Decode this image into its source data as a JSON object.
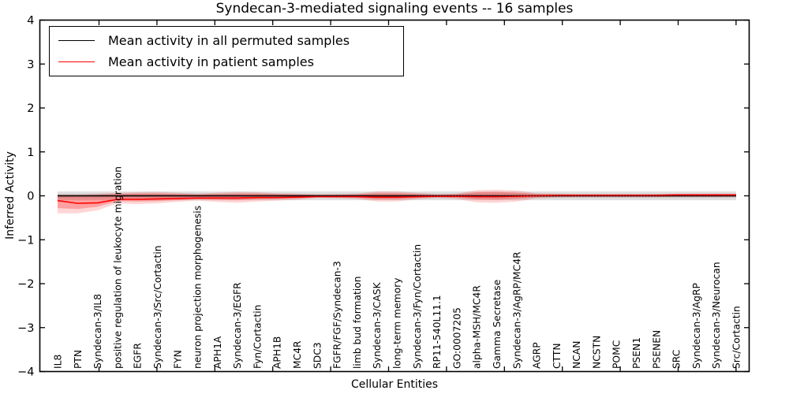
{
  "title": "Syndecan-3-mediated signaling events -- 16 samples",
  "legend": {
    "items": [
      {
        "label": "Mean activity in all permuted samples",
        "color": "#000000"
      },
      {
        "label": "Mean activity in patient samples",
        "color": "#ff0000"
      }
    ]
  },
  "axes": {
    "yticks": [
      {
        "v": 4,
        "label": "4"
      },
      {
        "v": 3,
        "label": "3"
      },
      {
        "v": 2,
        "label": "2"
      },
      {
        "v": 1,
        "label": "1"
      },
      {
        "v": 0,
        "label": "0"
      },
      {
        "v": -1,
        "label": "−1"
      },
      {
        "v": -2,
        "label": "−2"
      },
      {
        "v": -3,
        "label": "−3"
      },
      {
        "v": -4,
        "label": "−4"
      }
    ]
  },
  "chart_data": {
    "type": "line",
    "title": "Syndecan-3-mediated signaling events -- 16 samples",
    "xlabel": "Cellular Entities",
    "ylabel": "Inferred Activity",
    "ylim": [
      -4,
      4
    ],
    "grid": false,
    "legend_position": "upper left",
    "categories": [
      "IL8",
      "PTN",
      "Syndecan-3/IL8",
      "positive regulation of leukocyte migration",
      "EGFR",
      "Syndecan-3/Src/Cortactin",
      "FYN",
      "neuron projection morphogenesis",
      "APH1A",
      "Syndecan-3/EGFR",
      "Fyn/Cortactin",
      "APH1B",
      "MC4R",
      "SDC3",
      "FGFR/FGF/Syndecan-3",
      "limb bud formation",
      "Syndecan-3/CASK",
      "long-term memory",
      "Syndecan-3/Fyn/Cortactin",
      "RP11-540L11.1",
      "GO:0007205",
      "alpha-MSH/MC4R",
      "Gamma Secretase",
      "Syndecan-3/AgRP/MC4R",
      "AGRP",
      "CTTN",
      "NCAN",
      "NCSTN",
      "POMC",
      "PSEN1",
      "PSENEN",
      "SRC",
      "Syndecan-3/AgRP",
      "Syndecan-3/Neurocan",
      "Src/Cortactin"
    ],
    "series": [
      {
        "name": "Mean activity in all permuted samples",
        "color": "#000000",
        "style": "solid",
        "width": 1.5,
        "values": [
          0,
          0,
          0,
          0,
          0,
          0,
          0,
          0,
          0,
          0,
          0,
          0,
          0,
          0,
          0,
          0,
          0,
          0,
          0,
          0,
          0,
          0,
          0,
          0,
          0,
          0,
          0,
          0,
          0,
          0,
          0,
          0,
          0,
          0,
          0
        ]
      },
      {
        "name": "Mean activity in patient samples",
        "color": "#ff0000",
        "style": "solid",
        "width": 1.6,
        "values": [
          -0.11,
          -0.17,
          -0.16,
          -0.08,
          -0.08,
          -0.07,
          -0.06,
          -0.05,
          -0.05,
          -0.05,
          -0.04,
          -0.04,
          -0.03,
          -0.02,
          -0.02,
          -0.02,
          -0.03,
          -0.03,
          -0.02,
          -0.01,
          -0.01,
          -0.02,
          -0.02,
          -0.01,
          0,
          0.01,
          0.01,
          0.01,
          0.01,
          0.01,
          0.01,
          0.02,
          0.02,
          0.02,
          0.02
        ]
      }
    ],
    "reference_line": {
      "y": 0,
      "style": "dotted",
      "color": "#000000"
    },
    "bands": [
      {
        "name": "permuted-range",
        "color": "#000000",
        "opacity": 0.12,
        "upper": [
          0.1,
          0.1,
          0.1,
          0.1,
          0.1,
          0.1,
          0.1,
          0.1,
          0.1,
          0.1,
          0.1,
          0.1,
          0.1,
          0.1,
          0.1,
          0.1,
          0.1,
          0.1,
          0.1,
          0.1,
          0.1,
          0.1,
          0.1,
          0.1,
          0.1,
          0.1,
          0.1,
          0.1,
          0.1,
          0.1,
          0.1,
          0.1,
          0.1,
          0.1,
          0.1
        ],
        "lower": [
          -0.1,
          -0.1,
          -0.1,
          -0.1,
          -0.1,
          -0.1,
          -0.1,
          -0.1,
          -0.1,
          -0.1,
          -0.1,
          -0.1,
          -0.1,
          -0.1,
          -0.1,
          -0.1,
          -0.1,
          -0.1,
          -0.1,
          -0.1,
          -0.1,
          -0.1,
          -0.1,
          -0.1,
          -0.1,
          -0.1,
          -0.1,
          -0.1,
          -0.1,
          -0.1,
          -0.1,
          -0.1,
          -0.1,
          -0.1,
          -0.1
        ]
      },
      {
        "name": "permuted-inner",
        "color": "#000000",
        "opacity": 0.08,
        "upper": [
          0.05,
          0.05,
          0.05,
          0.05,
          0.05,
          0.05,
          0.05,
          0.05,
          0.05,
          0.05,
          0.05,
          0.05,
          0.05,
          0.05,
          0.05,
          0.05,
          0.05,
          0.05,
          0.05,
          0.05,
          0.05,
          0.05,
          0.05,
          0.05,
          0.05,
          0.05,
          0.05,
          0.05,
          0.05,
          0.05,
          0.05,
          0.05,
          0.05,
          0.05,
          0.05
        ],
        "lower": [
          -0.05,
          -0.05,
          -0.05,
          -0.05,
          -0.05,
          -0.05,
          -0.05,
          -0.05,
          -0.05,
          -0.05,
          -0.05,
          -0.05,
          -0.05,
          -0.05,
          -0.05,
          -0.05,
          -0.05,
          -0.05,
          -0.05,
          -0.05,
          -0.05,
          -0.05,
          -0.05,
          -0.05,
          -0.05,
          -0.05,
          -0.05,
          -0.05,
          -0.05,
          -0.05,
          -0.05,
          -0.05,
          -0.05,
          -0.05,
          -0.05
        ]
      },
      {
        "name": "patient-range",
        "color": "#ff0000",
        "opacity": 0.16,
        "upper": [
          0.03,
          0.03,
          0.05,
          0.07,
          0.08,
          0.09,
          0.07,
          0.05,
          0.07,
          0.09,
          0.08,
          0.06,
          0.05,
          0.03,
          0.04,
          0.05,
          0.1,
          0.1,
          0.07,
          0.04,
          0.05,
          0.13,
          0.14,
          0.12,
          0.06,
          0.05,
          0.04,
          0.04,
          0.04,
          0.04,
          0.04,
          0.05,
          0.05,
          0.05,
          0.05
        ],
        "lower": [
          -0.4,
          -0.4,
          -0.33,
          -0.17,
          -0.19,
          -0.17,
          -0.14,
          -0.11,
          -0.14,
          -0.16,
          -0.13,
          -0.11,
          -0.09,
          -0.04,
          -0.05,
          -0.07,
          -0.13,
          -0.13,
          -0.08,
          -0.05,
          -0.07,
          -0.15,
          -0.16,
          -0.13,
          -0.06,
          -0.04,
          -0.03,
          -0.03,
          -0.03,
          -0.03,
          -0.03,
          -0.03,
          -0.03,
          -0.03,
          -0.03
        ]
      },
      {
        "name": "patient-inner",
        "color": "#ff0000",
        "opacity": 0.25,
        "upper": [
          0.01,
          0.0,
          0.02,
          0.04,
          0.05,
          0.05,
          0.04,
          0.03,
          0.04,
          0.05,
          0.05,
          0.04,
          0.03,
          0.02,
          0.02,
          0.03,
          0.06,
          0.06,
          0.04,
          0.02,
          0.03,
          0.08,
          0.09,
          0.07,
          0.04,
          0.03,
          0.03,
          0.03,
          0.03,
          0.03,
          0.03,
          0.04,
          0.04,
          0.04,
          0.04
        ],
        "lower": [
          -0.28,
          -0.3,
          -0.25,
          -0.12,
          -0.13,
          -0.12,
          -0.1,
          -0.08,
          -0.09,
          -0.1,
          -0.08,
          -0.07,
          -0.06,
          -0.03,
          -0.03,
          -0.04,
          -0.08,
          -0.08,
          -0.05,
          -0.03,
          -0.04,
          -0.08,
          -0.09,
          -0.07,
          -0.03,
          -0.02,
          -0.02,
          -0.02,
          -0.02,
          -0.02,
          -0.02,
          -0.01,
          -0.01,
          -0.01,
          -0.01
        ]
      }
    ]
  }
}
